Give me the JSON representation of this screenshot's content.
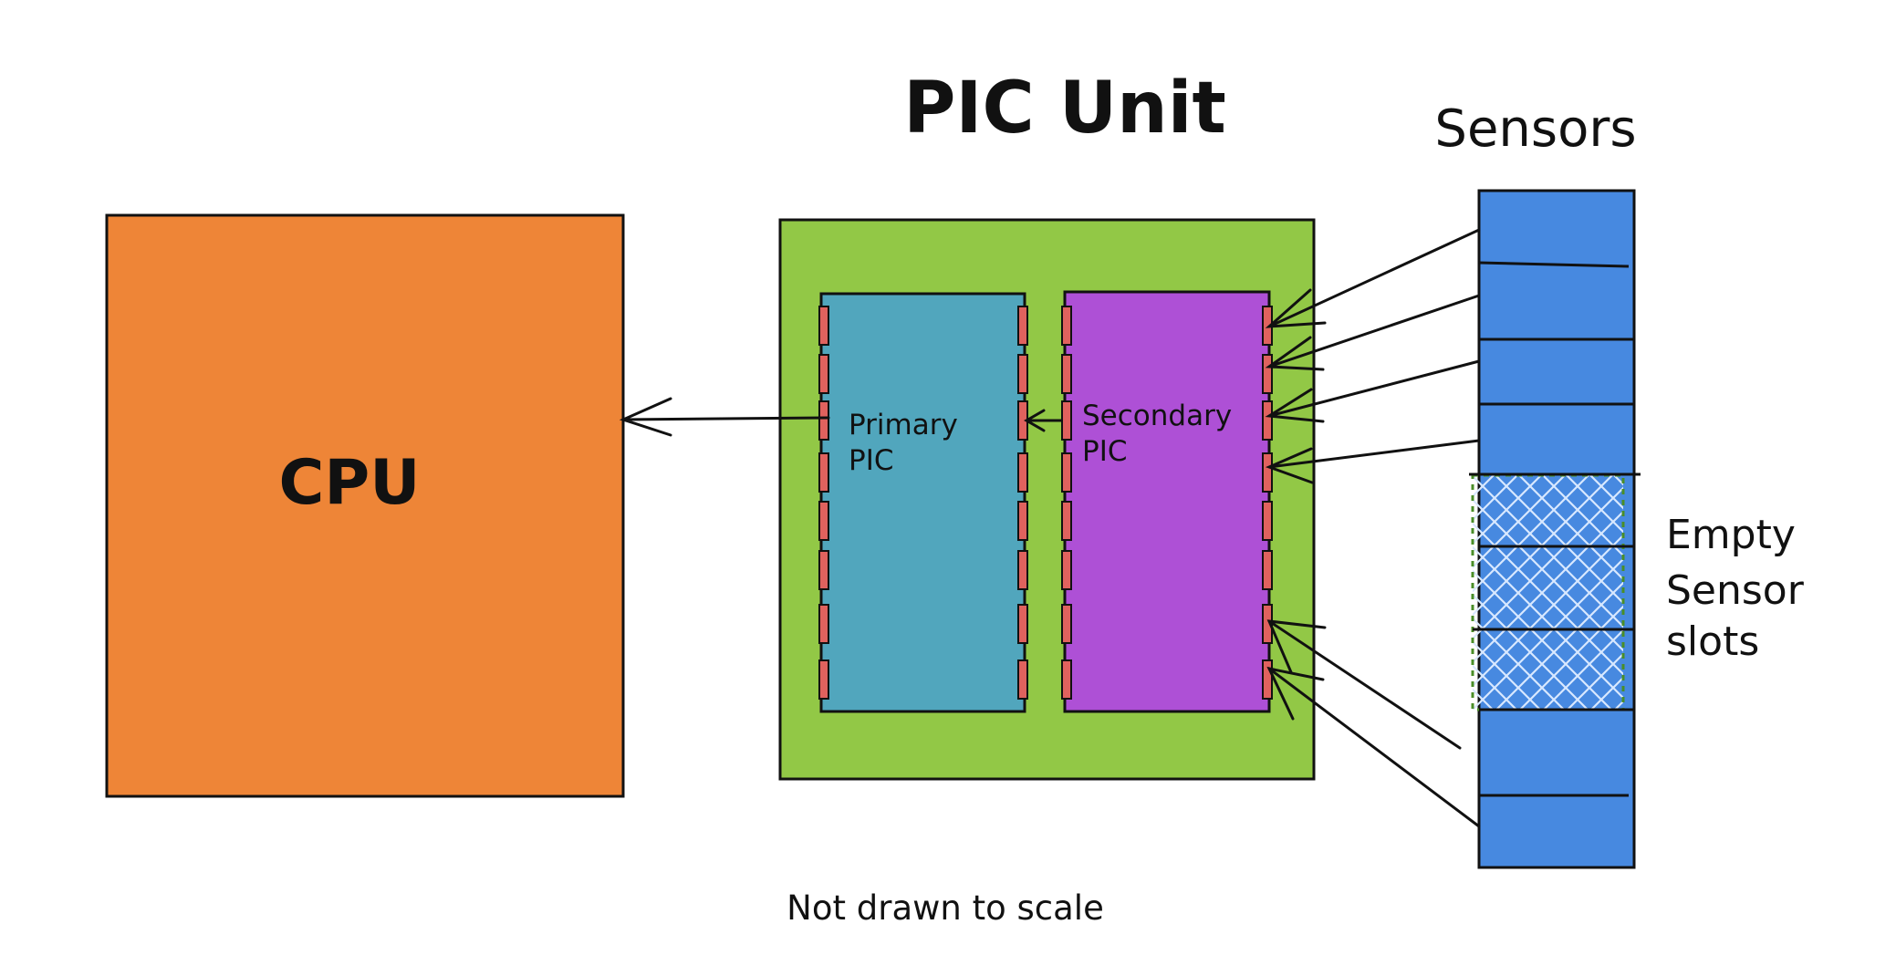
{
  "title": "PIC Unit",
  "sensors_label": "Sensors",
  "cpu_label": "CPU",
  "primary_pic": {
    "line1": "Primary",
    "line2": "PIC"
  },
  "secondary_pic": {
    "line1": "Secondary",
    "line2": "PIC"
  },
  "empty_slots": {
    "line1": "Empty",
    "line2": "Sensor",
    "line3": "slots"
  },
  "note": "Not drawn to scale",
  "colors": {
    "cpu": "#EE8537",
    "pic_unit": "#92C846",
    "primary_pic": "#51A6BD",
    "secondary_pic": "#AE50D6",
    "sensors": "#4789E0",
    "pins": "#E0625E"
  }
}
